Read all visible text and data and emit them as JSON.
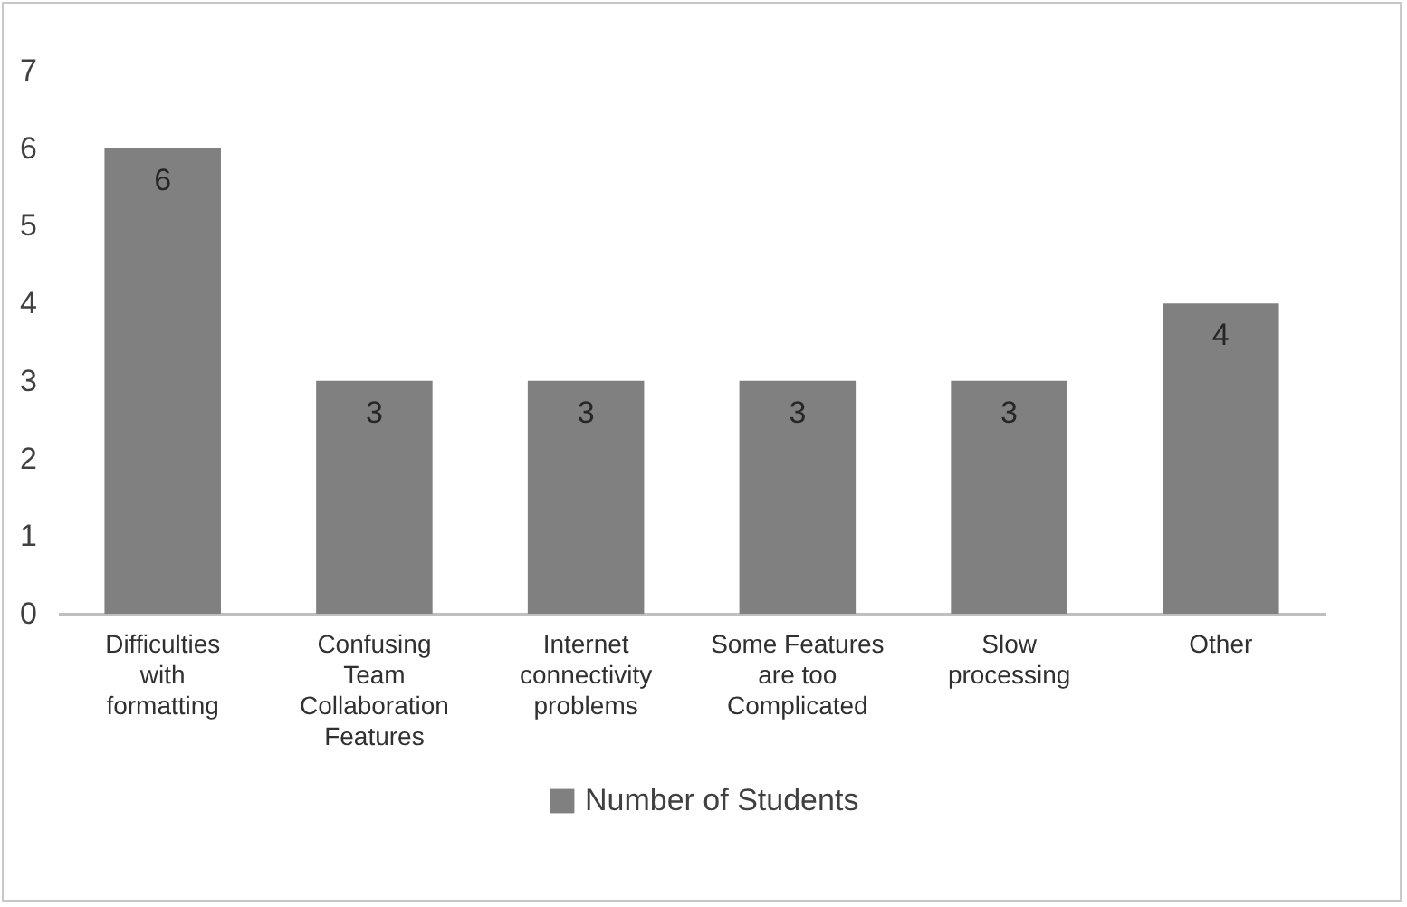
{
  "chart_data": {
    "type": "bar",
    "categories": [
      "Difficulties with formatting",
      "Confusing Team Collaboration Features",
      "Internet connectivity problems",
      "Some Features are too Complicated",
      "Slow processing",
      "Other"
    ],
    "series": [
      {
        "name": "Number of Students",
        "color": "#808080",
        "values": [
          6,
          3,
          3,
          3,
          3,
          4
        ]
      }
    ],
    "ylim": [
      0,
      7
    ],
    "yticks": [
      0,
      1,
      2,
      3,
      4,
      5,
      6,
      7
    ],
    "grid": false,
    "legend": "bottom",
    "data_labels": true
  }
}
